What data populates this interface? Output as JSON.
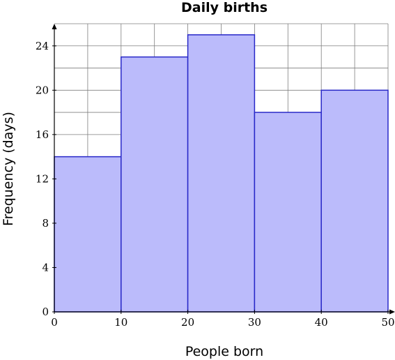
{
  "chart_data": {
    "type": "bar",
    "title": "Daily births",
    "xlabel": "People born",
    "ylabel": "Frequency (days)",
    "bins": [
      {
        "x0": 0,
        "x1": 10,
        "value": 14
      },
      {
        "x0": 10,
        "x1": 20,
        "value": 23
      },
      {
        "x0": 20,
        "x1": 30,
        "value": 25
      },
      {
        "x0": 30,
        "x1": 40,
        "value": 18
      },
      {
        "x0": 40,
        "x1": 50,
        "value": 20
      }
    ],
    "xlim": [
      0,
      50
    ],
    "ylim": [
      0,
      26
    ],
    "xticks": [
      "0",
      "10",
      "20",
      "30",
      "40",
      "50"
    ],
    "yticks": [
      "0",
      "4",
      "8",
      "12",
      "16",
      "20",
      "24"
    ],
    "grid": true,
    "bar_fill": "#bbbbfb",
    "bar_stroke": "#2828c8"
  }
}
